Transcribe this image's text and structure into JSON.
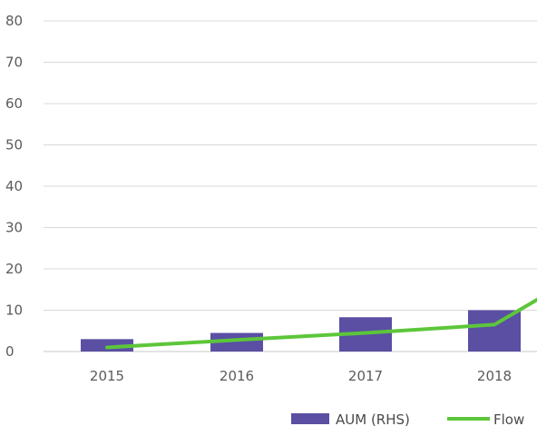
{
  "chart_data": {
    "type": "bar",
    "categories": [
      "2015",
      "2016",
      "2017",
      "2018"
    ],
    "ylim": [
      0,
      80
    ],
    "yticks": [
      0,
      10,
      20,
      30,
      40,
      50,
      60,
      70,
      80
    ],
    "grid": true,
    "legend_position": "bottom-right",
    "series": [
      {
        "name": "AUM (RHS)",
        "kind": "bar",
        "color": "#5a4fa3",
        "values": [
          3,
          4.5,
          8.3,
          10
        ]
      },
      {
        "name": "Flow",
        "kind": "line",
        "color": "#5cc63a",
        "values": [
          1,
          2.8,
          4.5,
          6.5
        ]
      }
    ]
  }
}
